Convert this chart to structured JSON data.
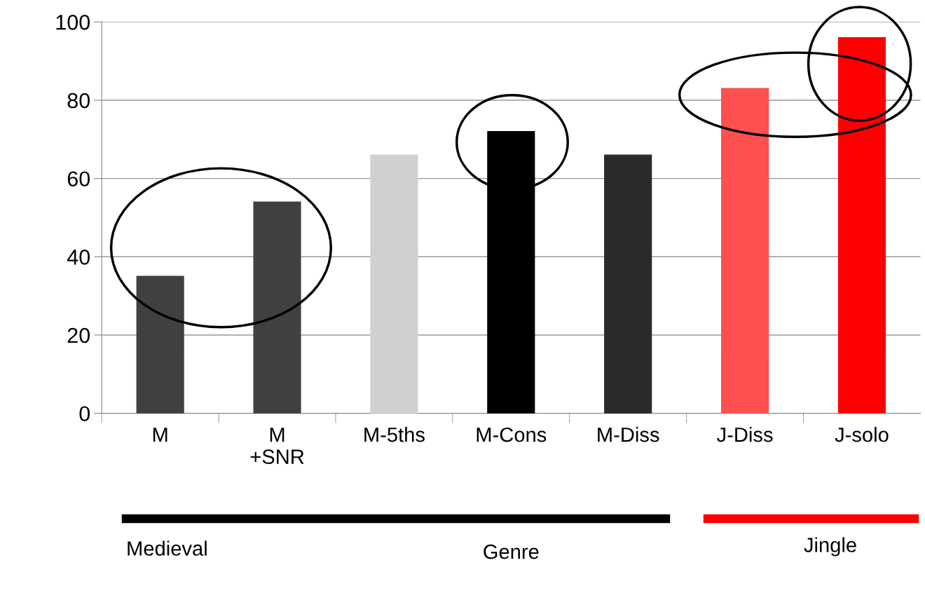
{
  "chart_data": {
    "type": "bar",
    "xlabel": "Genre",
    "categories": [
      "M",
      "M\n+SNR",
      "M-5ths",
      "M-Cons",
      "M-Diss",
      "J-Diss",
      "J-solo"
    ],
    "values": [
      35,
      54,
      66,
      72,
      66,
      83,
      96
    ],
    "colors": [
      "#404040",
      "#404040",
      "#d0d0d0",
      "#000000",
      "#2a2a2a",
      "#ff5050",
      "#ff0000"
    ],
    "ylim": [
      0,
      100
    ],
    "yticks": [
      0,
      20,
      40,
      60,
      80,
      100
    ],
    "grid": "y",
    "annotations": [
      "Medieval",
      "Jingle"
    ]
  }
}
